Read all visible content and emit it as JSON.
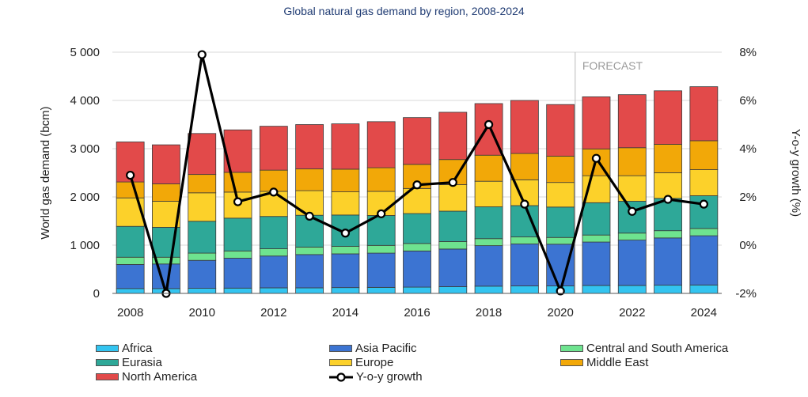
{
  "chart_data": {
    "type": "bar",
    "stacked": true,
    "title": "Global natural gas demand by region, 2008-2024",
    "ylabel": "World gas demand (bcm)",
    "y2label": "Y-o-y growth (%)",
    "ylim": [
      0,
      5000
    ],
    "y2lim": [
      -2,
      8
    ],
    "y_ticks": [
      "0",
      "1 000",
      "2 000",
      "3 000",
      "4 000",
      "5 000"
    ],
    "y2_ticks": [
      "-2%",
      "0%",
      "2%",
      "4%",
      "6%",
      "8%"
    ],
    "x_tick_labels": [
      "2008",
      "2010",
      "2012",
      "2014",
      "2016",
      "2018",
      "2020",
      "2022",
      "2024"
    ],
    "grid": true,
    "legend_position": "bottom",
    "forecast_label": "FORECAST",
    "forecast_start_year": 2021,
    "categories": [
      "2008",
      "2009",
      "2010",
      "2011",
      "2012",
      "2013",
      "2014",
      "2015",
      "2016",
      "2017",
      "2018",
      "2019",
      "2020",
      "2021",
      "2022",
      "2023",
      "2024"
    ],
    "series": [
      {
        "name": "Africa",
        "color": "#33c4f0",
        "values": [
          100,
          100,
          105,
          110,
          115,
          115,
          120,
          125,
          130,
          140,
          150,
          155,
          155,
          165,
          165,
          170,
          175
        ]
      },
      {
        "name": "Asia Pacific",
        "color": "#3c74d2",
        "values": [
          500,
          510,
          580,
          620,
          660,
          690,
          700,
          710,
          750,
          780,
          840,
          870,
          865,
          900,
          940,
          980,
          1020
        ]
      },
      {
        "name": "Central and South America",
        "color": "#6ee38f",
        "values": [
          150,
          140,
          150,
          150,
          150,
          155,
          155,
          160,
          155,
          155,
          145,
          145,
          140,
          145,
          145,
          150,
          150
        ]
      },
      {
        "name": "Eurasia",
        "color": "#2ea898",
        "values": [
          640,
          620,
          660,
          680,
          670,
          660,
          650,
          620,
          620,
          630,
          660,
          650,
          630,
          670,
          660,
          670,
          680
        ]
      },
      {
        "name": "Europe",
        "color": "#fcd12a",
        "values": [
          590,
          540,
          590,
          540,
          520,
          510,
          480,
          500,
          520,
          550,
          530,
          535,
          510,
          560,
          530,
          530,
          540
        ]
      },
      {
        "name": "Middle East",
        "color": "#f2a808",
        "values": [
          330,
          360,
          380,
          410,
          440,
          450,
          470,
          490,
          500,
          520,
          540,
          545,
          545,
          555,
          580,
          590,
          600
        ]
      },
      {
        "name": "North America",
        "color": "#e24a4a",
        "values": [
          830,
          810,
          850,
          880,
          910,
          920,
          940,
          955,
          970,
          980,
          1070,
          1100,
          1070,
          1080,
          1100,
          1110,
          1120
        ]
      }
    ],
    "line_series": {
      "name": "Y-o-y growth",
      "axis": "right",
      "color": "#000000",
      "values": [
        2.9,
        -2.0,
        7.9,
        1.8,
        2.2,
        1.2,
        0.5,
        1.3,
        2.5,
        2.6,
        5.0,
        1.7,
        -1.9,
        3.6,
        1.4,
        1.9,
        1.7
      ]
    }
  }
}
